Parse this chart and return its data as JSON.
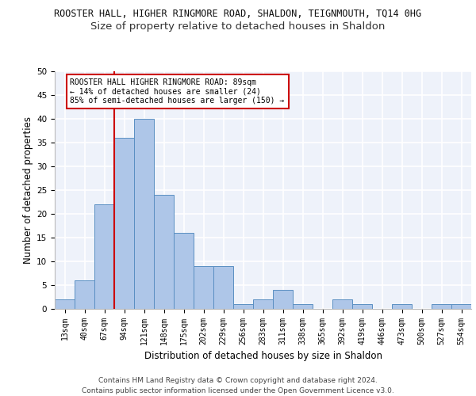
{
  "title_line1": "ROOSTER HALL, HIGHER RINGMORE ROAD, SHALDON, TEIGNMOUTH, TQ14 0HG",
  "title_line2": "Size of property relative to detached houses in Shaldon",
  "xlabel": "Distribution of detached houses by size in Shaldon",
  "ylabel": "Number of detached properties",
  "categories": [
    "13sqm",
    "40sqm",
    "67sqm",
    "94sqm",
    "121sqm",
    "148sqm",
    "175sqm",
    "202sqm",
    "229sqm",
    "256sqm",
    "283sqm",
    "311sqm",
    "338sqm",
    "365sqm",
    "392sqm",
    "419sqm",
    "446sqm",
    "473sqm",
    "500sqm",
    "527sqm",
    "554sqm"
  ],
  "values": [
    2,
    6,
    22,
    36,
    40,
    24,
    16,
    9,
    9,
    1,
    2,
    4,
    1,
    0,
    2,
    1,
    0,
    1,
    0,
    1,
    1
  ],
  "bar_color": "#aec6e8",
  "bar_edge_color": "#5a8fc2",
  "vline_color": "#cc0000",
  "ylim": [
    0,
    50
  ],
  "yticks": [
    0,
    5,
    10,
    15,
    20,
    25,
    30,
    35,
    40,
    45,
    50
  ],
  "annotation_text": "ROOSTER HALL HIGHER RINGMORE ROAD: 89sqm\n← 14% of detached houses are smaller (24)\n85% of semi-detached houses are larger (150) →",
  "annotation_box_color": "#ffffff",
  "annotation_box_edge": "#cc0000",
  "footer_line1": "Contains HM Land Registry data © Crown copyright and database right 2024.",
  "footer_line2": "Contains public sector information licensed under the Open Government Licence v3.0.",
  "bg_color": "#eef2fa",
  "grid_color": "#ffffff",
  "title_fontsize": 8.5,
  "subtitle_fontsize": 9.5,
  "tick_fontsize": 7,
  "label_fontsize": 8.5,
  "footer_fontsize": 6.5
}
